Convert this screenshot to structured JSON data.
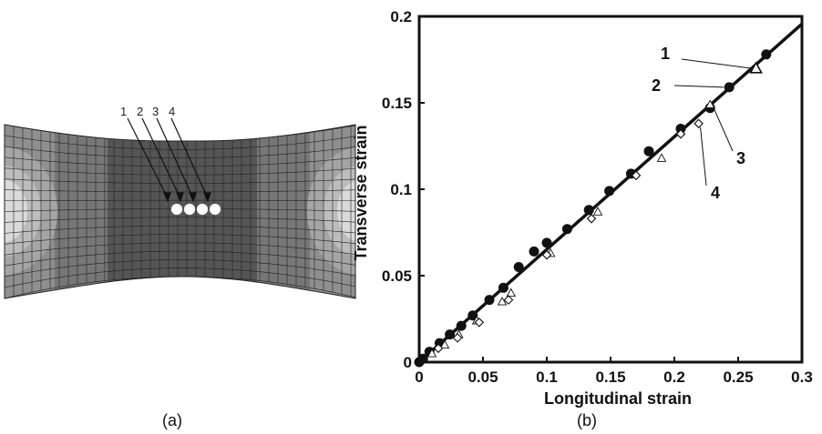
{
  "panel_a": {
    "caption": "(a)",
    "point_labels": [
      "1",
      "2",
      "3",
      "4"
    ],
    "colors": {
      "band_light": "#9a9a9a",
      "band_mid": "#6f6f6f",
      "band_dark": "#4a4a4a",
      "band_lighter": "#c0c0c0",
      "band_white": "#eeeeee"
    }
  },
  "panel_b": {
    "caption": "(b)"
  },
  "chart_data": {
    "type": "scatter",
    "xlabel": "Longitudinal strain",
    "ylabel": "Transverse strain",
    "xlim": [
      0,
      0.3
    ],
    "ylim": [
      0,
      0.2
    ],
    "xticks": [
      "0",
      "0.05",
      "0.1",
      "0.15",
      "0.2",
      "0.25",
      "0.3"
    ],
    "yticks": [
      "0",
      "0.05",
      "0.1",
      "0.15",
      "0.2"
    ],
    "grid": false,
    "line": {
      "slope": 0.652,
      "x": [
        0,
        0.3
      ]
    },
    "series": [
      {
        "name": "1",
        "marker": "triangle",
        "x": [
          0.264
        ],
        "y": [
          0.17
        ]
      },
      {
        "name": "2",
        "marker": "filled-circle",
        "x": [
          0.0,
          0.003,
          0.008,
          0.016,
          0.024,
          0.033,
          0.042,
          0.055,
          0.066,
          0.078,
          0.09,
          0.1,
          0.116,
          0.133,
          0.149,
          0.166,
          0.18,
          0.205,
          0.228,
          0.243,
          0.272
        ],
        "y": [
          0.0,
          0.002,
          0.006,
          0.011,
          0.016,
          0.021,
          0.027,
          0.036,
          0.043,
          0.055,
          0.064,
          0.069,
          0.077,
          0.088,
          0.099,
          0.109,
          0.122,
          0.135,
          0.147,
          0.159,
          0.178
        ]
      },
      {
        "name": "3",
        "marker": "open-triangle",
        "x": [
          0.01,
          0.02,
          0.031,
          0.045,
          0.065,
          0.072,
          0.103,
          0.14,
          0.19,
          0.228
        ],
        "y": [
          0.005,
          0.01,
          0.016,
          0.024,
          0.035,
          0.04,
          0.063,
          0.087,
          0.118,
          0.149
        ]
      },
      {
        "name": "4",
        "marker": "open-diamond",
        "x": [
          0.015,
          0.03,
          0.047,
          0.07,
          0.1,
          0.135,
          0.17,
          0.205,
          0.219
        ],
        "y": [
          0.008,
          0.014,
          0.023,
          0.036,
          0.062,
          0.083,
          0.108,
          0.132,
          0.138
        ]
      }
    ],
    "annotations": [
      "1",
      "2",
      "3",
      "4"
    ]
  }
}
